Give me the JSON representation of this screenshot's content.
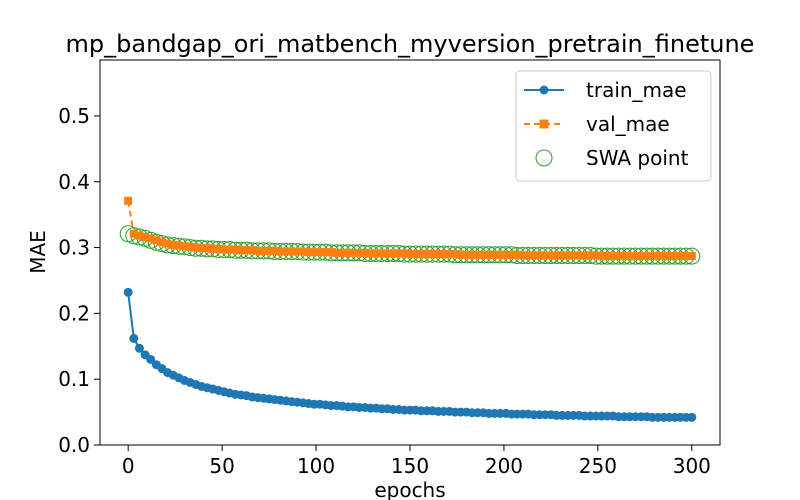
{
  "chart_data": {
    "type": "line",
    "title": "mp_bandgap_ori_matbench_myversion_pretrain_finetune",
    "xlabel": "epochs",
    "ylabel": "MAE",
    "xlim": [
      -15,
      315
    ],
    "ylim": [
      0.0,
      0.585
    ],
    "xticks": [
      0,
      50,
      100,
      150,
      200,
      250,
      300
    ],
    "yticks": [
      0.0,
      0.1,
      0.2,
      0.3,
      0.4,
      0.5
    ],
    "xtick_labels": [
      "0",
      "50",
      "100",
      "150",
      "200",
      "250",
      "300"
    ],
    "ytick_labels": [
      "0.0",
      "0.1",
      "0.2",
      "0.3",
      "0.4",
      "0.5"
    ],
    "grid": false,
    "legend_position": "top-right",
    "series": [
      {
        "name": "train_mae",
        "color": "#1f77b4",
        "marker": "circle",
        "linestyle": "solid",
        "x_start": 0,
        "x_step": 3,
        "values": [
          0.232,
          0.162,
          0.147,
          0.137,
          0.13,
          0.122,
          0.116,
          0.11,
          0.106,
          0.102,
          0.098,
          0.095,
          0.092,
          0.089,
          0.087,
          0.085,
          0.083,
          0.081,
          0.079,
          0.077,
          0.076,
          0.075,
          0.073,
          0.072,
          0.071,
          0.07,
          0.069,
          0.068,
          0.067,
          0.066,
          0.065,
          0.064,
          0.063,
          0.062,
          0.062,
          0.061,
          0.06,
          0.06,
          0.059,
          0.058,
          0.058,
          0.057,
          0.057,
          0.056,
          0.056,
          0.055,
          0.055,
          0.054,
          0.054,
          0.053,
          0.053,
          0.053,
          0.052,
          0.052,
          0.052,
          0.051,
          0.051,
          0.051,
          0.05,
          0.05,
          0.05,
          0.049,
          0.049,
          0.049,
          0.048,
          0.048,
          0.048,
          0.048,
          0.047,
          0.047,
          0.047,
          0.047,
          0.046,
          0.046,
          0.046,
          0.046,
          0.045,
          0.045,
          0.045,
          0.045,
          0.045,
          0.044,
          0.044,
          0.044,
          0.044,
          0.044,
          0.044,
          0.043,
          0.043,
          0.043,
          0.043,
          0.043,
          0.043,
          0.042,
          0.042,
          0.042,
          0.042,
          0.042,
          0.042,
          0.042,
          0.042
        ]
      },
      {
        "name": "val_mae",
        "color": "#ff7f0e",
        "marker": "square",
        "linestyle": "dashed",
        "x_start": 0,
        "x_step": 3,
        "values": [
          0.371,
          0.321,
          0.318,
          0.316,
          0.314,
          0.311,
          0.308,
          0.306,
          0.304,
          0.303,
          0.302,
          0.301,
          0.3,
          0.299,
          0.299,
          0.298,
          0.298,
          0.297,
          0.297,
          0.297,
          0.296,
          0.296,
          0.296,
          0.295,
          0.295,
          0.295,
          0.295,
          0.294,
          0.294,
          0.294,
          0.294,
          0.294,
          0.293,
          0.293,
          0.293,
          0.293,
          0.293,
          0.292,
          0.292,
          0.292,
          0.292,
          0.292,
          0.292,
          0.291,
          0.291,
          0.291,
          0.291,
          0.291,
          0.291,
          0.291,
          0.29,
          0.29,
          0.29,
          0.29,
          0.29,
          0.29,
          0.29,
          0.29,
          0.29,
          0.289,
          0.289,
          0.289,
          0.289,
          0.289,
          0.289,
          0.289,
          0.289,
          0.289,
          0.289,
          0.289,
          0.288,
          0.288,
          0.288,
          0.288,
          0.288,
          0.288,
          0.288,
          0.288,
          0.288,
          0.288,
          0.288,
          0.288,
          0.288,
          0.288,
          0.287,
          0.287,
          0.287,
          0.287,
          0.287,
          0.287,
          0.287,
          0.287,
          0.287,
          0.287,
          0.287,
          0.287,
          0.287,
          0.287,
          0.287,
          0.287,
          0.287
        ]
      },
      {
        "name": "SWA point",
        "color": "#2ca02c",
        "marker": "hollow-circle",
        "linestyle": "none",
        "x_start": 0,
        "x_step": 3,
        "values": [
          0.321,
          0.318,
          0.316,
          0.314,
          0.311,
          0.308,
          0.306,
          0.304,
          0.303,
          0.302,
          0.301,
          0.3,
          0.299,
          0.299,
          0.298,
          0.298,
          0.297,
          0.297,
          0.297,
          0.296,
          0.296,
          0.296,
          0.295,
          0.295,
          0.295,
          0.295,
          0.294,
          0.294,
          0.294,
          0.294,
          0.294,
          0.293,
          0.293,
          0.293,
          0.293,
          0.293,
          0.292,
          0.292,
          0.292,
          0.292,
          0.292,
          0.292,
          0.291,
          0.291,
          0.291,
          0.291,
          0.291,
          0.291,
          0.291,
          0.29,
          0.29,
          0.29,
          0.29,
          0.29,
          0.29,
          0.29,
          0.29,
          0.29,
          0.289,
          0.289,
          0.289,
          0.289,
          0.289,
          0.289,
          0.289,
          0.289,
          0.289,
          0.289,
          0.289,
          0.288,
          0.288,
          0.288,
          0.288,
          0.288,
          0.288,
          0.288,
          0.288,
          0.288,
          0.288,
          0.288,
          0.288,
          0.288,
          0.288,
          0.287,
          0.287,
          0.287,
          0.287,
          0.287,
          0.287,
          0.287,
          0.287,
          0.287,
          0.287,
          0.287,
          0.287,
          0.287,
          0.287,
          0.287,
          0.287,
          0.287,
          0.287
        ]
      }
    ]
  }
}
